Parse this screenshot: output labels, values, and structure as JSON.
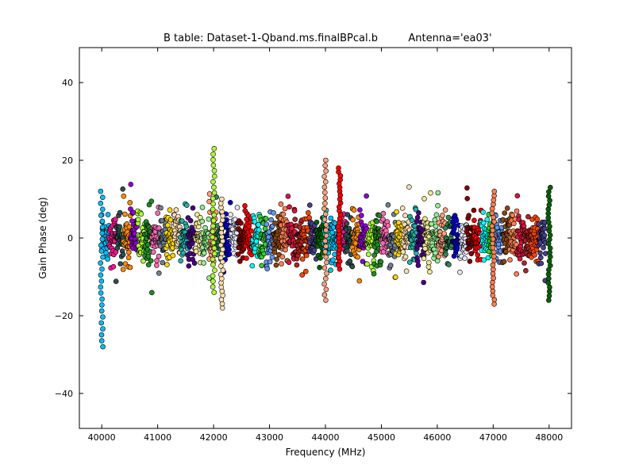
{
  "chart_data": {
    "type": "scatter",
    "title": "B table: Dataset-1-Qband.ms.finalBPcal.b",
    "title_annotation": "Antenna='ea03'",
    "xlabel": "Frequency (MHz)",
    "ylabel": "Gain Phase (deg)",
    "xlim": [
      39600,
      48400
    ],
    "ylim": [
      -49,
      49
    ],
    "x_ticks": [
      40000,
      41000,
      42000,
      43000,
      44000,
      45000,
      46000,
      47000,
      48000
    ],
    "x_tick_labels": [
      "40000",
      "41000",
      "42000",
      "43000",
      "44000",
      "45000",
      "46000",
      "47000",
      "48000"
    ],
    "y_ticks": [
      -40,
      -20,
      0,
      20,
      40
    ],
    "y_tick_labels": [
      "−40",
      "−20",
      "0",
      "20",
      "40"
    ],
    "grid": false,
    "legend": "none",
    "marker": "circle",
    "series_colors": [
      "#00bfff",
      "#ff1493",
      "#2f4f4f",
      "#ff8c00",
      "#9400d3",
      "#adff2f",
      "#228b22",
      "#ff69b4",
      "#708090",
      "#ffd700",
      "#ffdead",
      "#20b2aa",
      "#4b0082",
      "#f0e68c",
      "#90ee90",
      "#ffa07a",
      "#2e8b57",
      "#0000cd",
      "#e6e6fa",
      "#8b0000",
      "#ff0000",
      "#00ffff",
      "#32cd32",
      "#6495ed",
      "#8b4513",
      "#ff7f50",
      "#dc143c",
      "#b22222",
      "#ff4500",
      "#483d8b",
      "#006400",
      "#00ced1"
    ],
    "spw_width_mhz": 128,
    "spw_starts_mhz": [
      40000,
      40128,
      40256,
      40384,
      40512,
      40640,
      40768,
      40896,
      41024,
      41152,
      41280,
      41408,
      41536,
      41664,
      41792,
      41920,
      42048,
      42176,
      42304,
      42432,
      42560,
      42688,
      42816,
      42944,
      43072,
      43200,
      43328,
      43456,
      43584,
      43712,
      43840,
      43968,
      44096,
      44224,
      44352,
      44480,
      44608,
      44736,
      44864,
      44992,
      45120,
      45248,
      45376,
      45504,
      45632,
      45760,
      45888,
      46016,
      46144,
      46272,
      46400,
      46528,
      46656,
      46784,
      46912,
      47040,
      47168,
      47296,
      47424,
      47552,
      47680,
      47808
    ],
    "typical_phase_range_deg": [
      -8,
      8
    ],
    "extremes": [
      {
        "x": 40000,
        "y_min": -28,
        "y_max": 12
      },
      {
        "x": 42000,
        "y_min": -14,
        "y_max": 23
      },
      {
        "x": 42150,
        "y_min": -18,
        "y_max": 10
      },
      {
        "x": 44000,
        "y_min": -16,
        "y_max": 20
      },
      {
        "x": 44250,
        "y_min": -8,
        "y_max": 18
      },
      {
        "x": 47000,
        "y_min": -17,
        "y_max": 12
      },
      {
        "x": 48000,
        "y_min": -16,
        "y_max": 13
      }
    ]
  }
}
